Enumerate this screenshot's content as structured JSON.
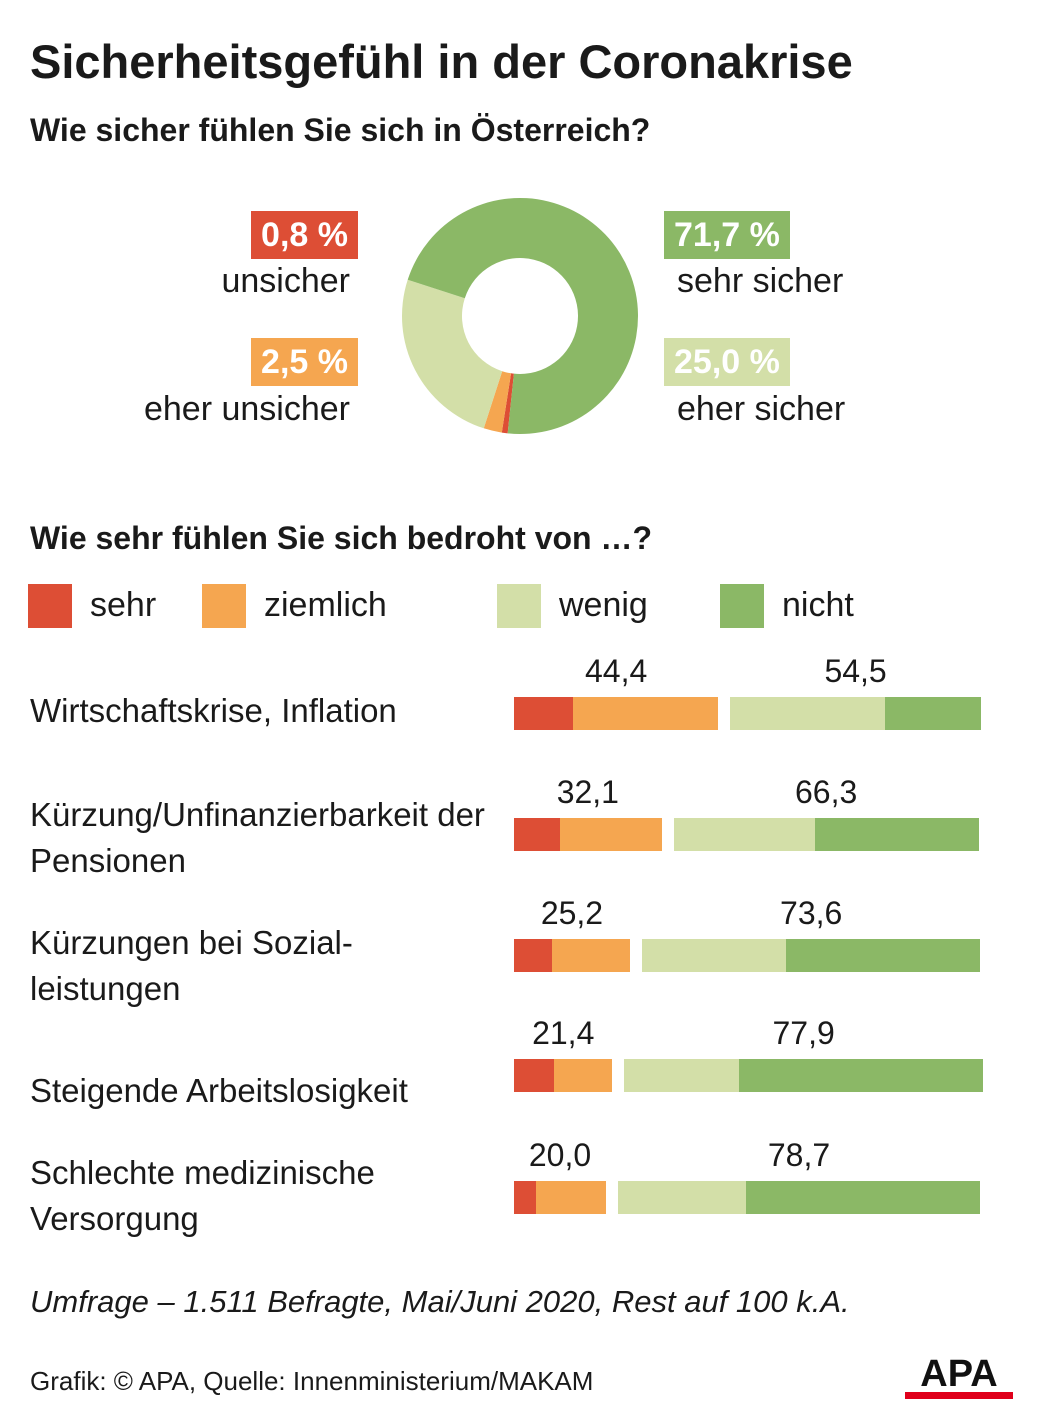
{
  "title": "Sicherheitsgefühl in der Coronakrise",
  "colors": {
    "sehr": "#dd4e35",
    "ziemlich": "#f5a650",
    "wenig": "#d3dfa8",
    "nicht": "#8bb866"
  },
  "chart_data": [
    {
      "type": "pie",
      "title": "Wie sicher fühlen Sie sich in Österreich?",
      "slices": [
        {
          "label": "unsicher",
          "value": 0.8,
          "value_text": "0,8 %"
        },
        {
          "label": "eher unsicher",
          "value": 2.5,
          "value_text": "2,5 %"
        },
        {
          "label": "eher sicher",
          "value": 25.0,
          "value_text": "25,0 %"
        },
        {
          "label": "sehr sicher",
          "value": 71.7,
          "value_text": "71,7 %"
        }
      ]
    },
    {
      "type": "bar",
      "stacked": true,
      "title": "Wie sehr fühlen Sie sich bedroht von …?",
      "legend": [
        "sehr",
        "ziemlich",
        "wenig",
        "nicht"
      ],
      "categories": [
        "Wirtschaftskrise, Inflation",
        "Kürzung/Unfinanzierbarkeit der Pensionen",
        "Kürzungen bei Sozial- leistungen",
        "Steigende Arbeitslosigkeit",
        "Schlechte medizinische Versorgung"
      ],
      "series": [
        {
          "name": "sehr",
          "values": [
            12.9,
            9.9,
            8.3,
            8.8,
            4.8
          ]
        },
        {
          "name": "ziemlich",
          "values": [
            31.5,
            22.2,
            16.9,
            12.6,
            15.2
          ]
        },
        {
          "name": "wenig",
          "values": [
            33.7,
            30.8,
            31.4,
            24.8,
            27.9
          ]
        },
        {
          "name": "nicht",
          "values": [
            20.8,
            35.5,
            42.2,
            53.1,
            50.8
          ]
        }
      ],
      "totals_threatened": [
        "44,4",
        "32,1",
        "25,2",
        "21,4",
        "20,0"
      ],
      "totals_not_threatened": [
        "54,5",
        "66,3",
        "73,6",
        "77,9",
        "78,7"
      ]
    }
  ],
  "footnote": "Umfrage – 1.511 Befragte, Mai/Juni 2020, Rest auf 100 k.A.",
  "credit": "Grafik: © APA, Quelle: Innenministerium/MAKAM",
  "logo_text": "APA"
}
